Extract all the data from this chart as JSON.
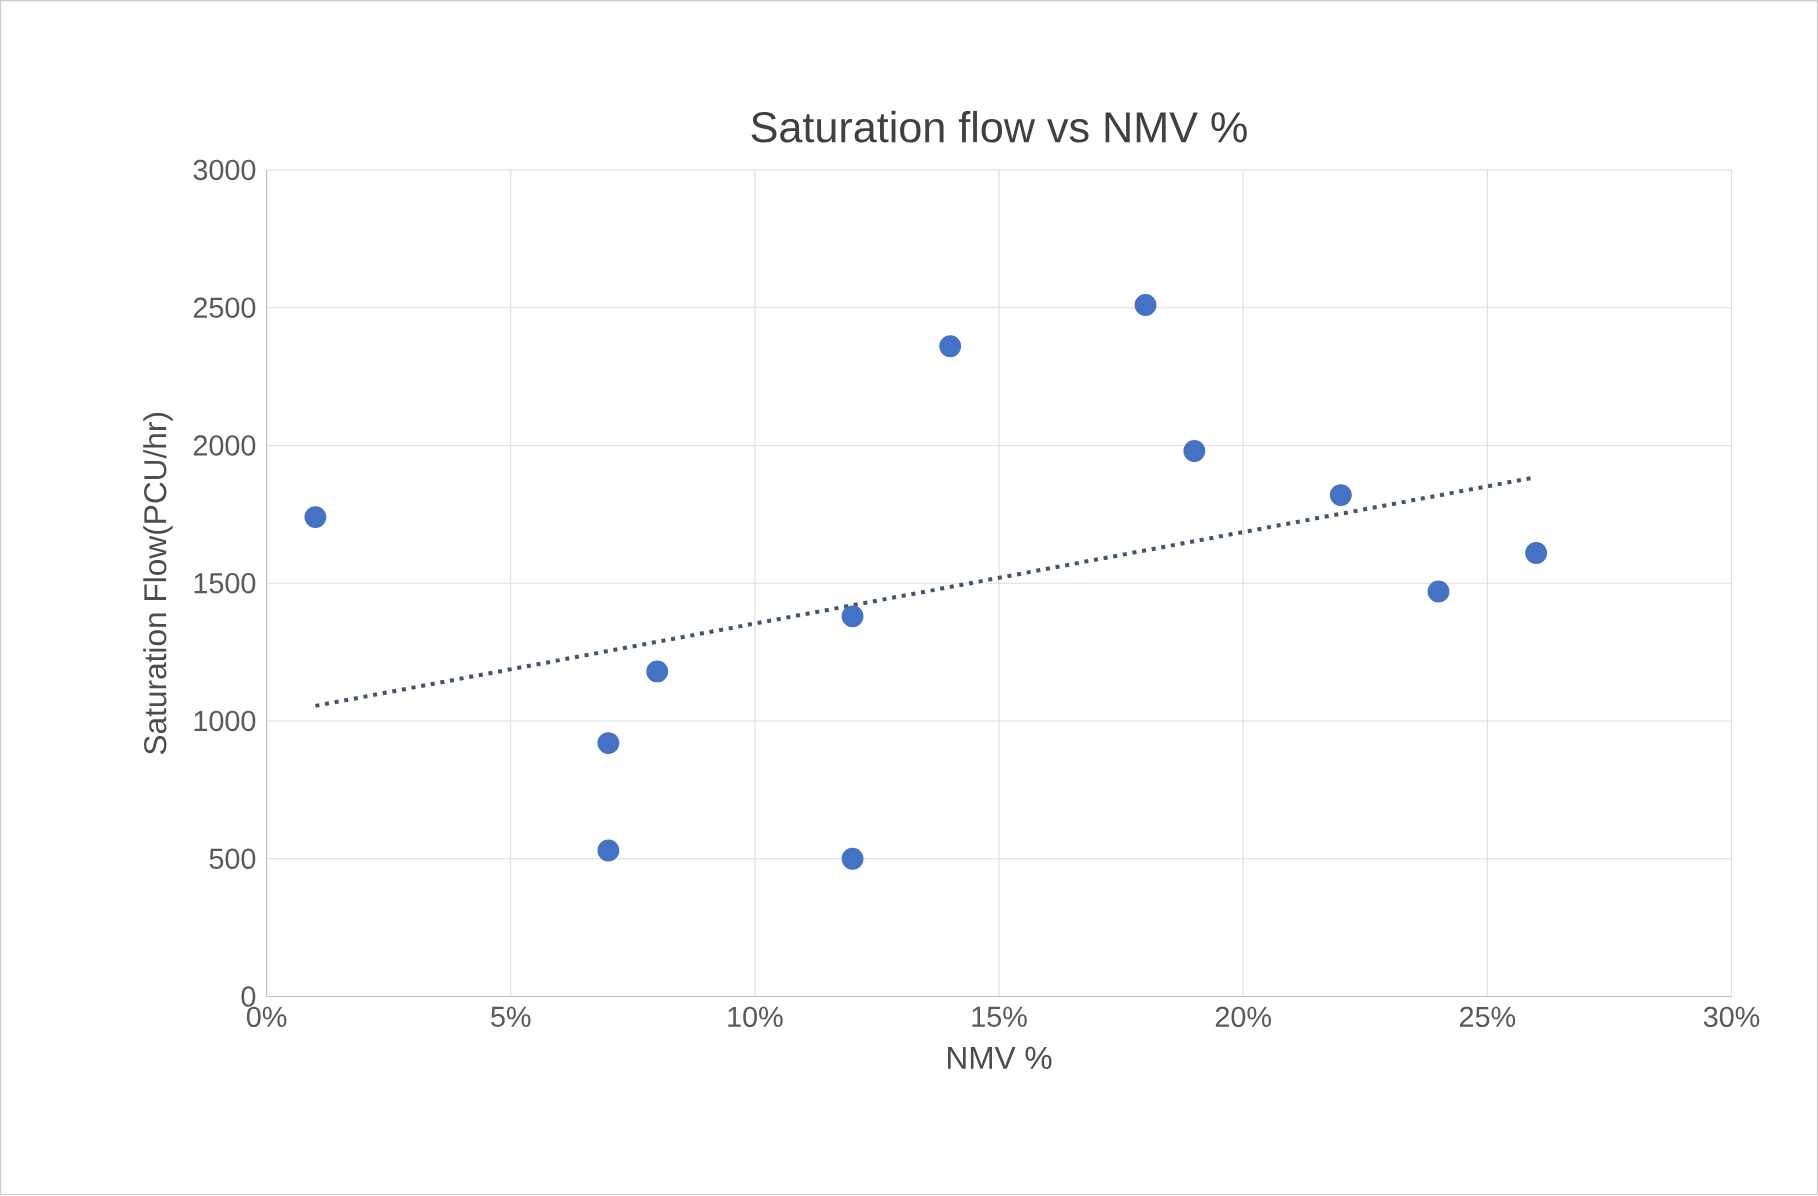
{
  "chart_data": {
    "type": "scatter",
    "title": "Saturation flow vs NMV %",
    "xlabel": "NMV %",
    "ylabel": "Saturation Flow(PCU/hr)",
    "xlim": [
      0,
      30
    ],
    "ylim": [
      0,
      3000
    ],
    "xticks": [
      {
        "value": 0,
        "label": "0%"
      },
      {
        "value": 5,
        "label": "5%"
      },
      {
        "value": 10,
        "label": "10%"
      },
      {
        "value": 15,
        "label": "15%"
      },
      {
        "value": 20,
        "label": "20%"
      },
      {
        "value": 25,
        "label": "25%"
      },
      {
        "value": 30,
        "label": "30%"
      }
    ],
    "yticks": [
      0,
      500,
      1000,
      1500,
      2000,
      2500,
      3000
    ],
    "grid": true,
    "series": [
      {
        "type": "scatter",
        "marker": "circle",
        "color": "#4472c4",
        "x": [
          1,
          7,
          7,
          8,
          12,
          12,
          14,
          18,
          19,
          22,
          24,
          26
        ],
        "values": [
          1740,
          920,
          530,
          1180,
          1380,
          500,
          2360,
          2510,
          1980,
          1820,
          1470,
          1610
        ]
      },
      {
        "type": "line",
        "line_style": "dotted",
        "marker": "none",
        "color": "#44546a",
        "x": [
          1,
          26
        ],
        "values": [
          1055,
          1885
        ]
      }
    ]
  }
}
